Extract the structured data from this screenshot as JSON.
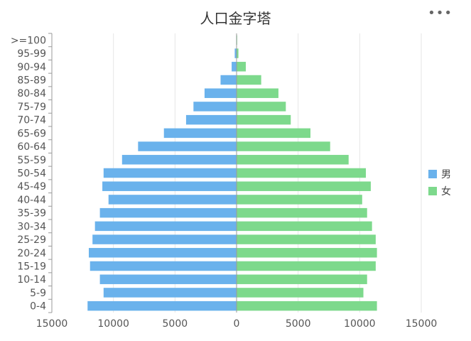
{
  "title": "人口金字塔",
  "menu_icon": "more-dots-icon",
  "colors": {
    "male": "#6ab2ec",
    "female": "#7dd98c",
    "grid": "#e6e6e6",
    "axis": "#999999"
  },
  "chart_data": {
    "type": "bar",
    "orientation": "horizontal-diverging",
    "title": "人口金字塔",
    "categories": [
      ">=100",
      "95-99",
      "90-94",
      "85-89",
      "80-84",
      "75-79",
      "70-74",
      "65-69",
      "60-64",
      "55-59",
      "50-54",
      "45-49",
      "40-44",
      "35-39",
      "30-34",
      "25-29",
      "20-24",
      "15-19",
      "10-14",
      "5-9",
      "0-4"
    ],
    "series": [
      {
        "name": "男",
        "values": [
          30,
          150,
          400,
          1300,
          2600,
          3500,
          4100,
          5900,
          8000,
          9300,
          10800,
          10900,
          10400,
          11100,
          11500,
          11700,
          12000,
          11900,
          11100,
          10800,
          12100
        ]
      },
      {
        "name": "女",
        "values": [
          50,
          150,
          750,
          2000,
          3400,
          4000,
          4400,
          6000,
          7600,
          9100,
          10500,
          10900,
          10200,
          10600,
          11000,
          11300,
          11400,
          11300,
          10600,
          10300,
          11400
        ]
      }
    ],
    "xlim": [
      -15000,
      15000
    ],
    "xticks": [
      "15000",
      "10000",
      "5000",
      "0",
      "5000",
      "10000",
      "15000"
    ],
    "legend": "right",
    "grid": true
  }
}
